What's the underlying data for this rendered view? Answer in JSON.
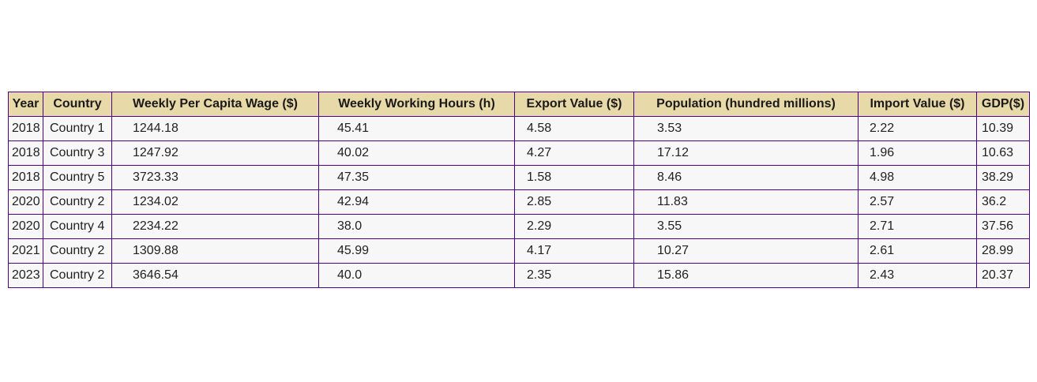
{
  "chart_data": {
    "type": "table",
    "columns": [
      "Year",
      "Country",
      "Weekly Per Capita Wage ($)",
      "Weekly Working Hours (h)",
      "Export Value ($)",
      "Population (hundred millions)",
      "Import Value ($)",
      "GDP($)"
    ],
    "rows": [
      [
        "2018",
        "Country 1",
        "1244.18",
        "45.41",
        "4.58",
        "3.53",
        "2.22",
        "10.39"
      ],
      [
        "2018",
        "Country 3",
        "1247.92",
        "40.02",
        "4.27",
        "17.12",
        "1.96",
        "10.63"
      ],
      [
        "2018",
        "Country 5",
        "3723.33",
        "47.35",
        "1.58",
        "8.46",
        "4.98",
        "38.29"
      ],
      [
        "2020",
        "Country 2",
        "1234.02",
        "42.94",
        "2.85",
        "11.83",
        "2.57",
        "36.2"
      ],
      [
        "2020",
        "Country 4",
        "2234.22",
        "38.0",
        "2.29",
        "3.55",
        "2.71",
        "37.56"
      ],
      [
        "2021",
        "Country 2",
        "1309.88",
        "45.99",
        "4.17",
        "10.27",
        "2.61",
        "28.99"
      ],
      [
        "2023",
        "Country 2",
        "3646.54",
        "40.0",
        "2.35",
        "15.86",
        "2.43",
        "20.37"
      ]
    ],
    "colors": {
      "header_background": "#e8d9a8",
      "cell_background": "#f7f7f7",
      "border": "#4b0082"
    }
  }
}
